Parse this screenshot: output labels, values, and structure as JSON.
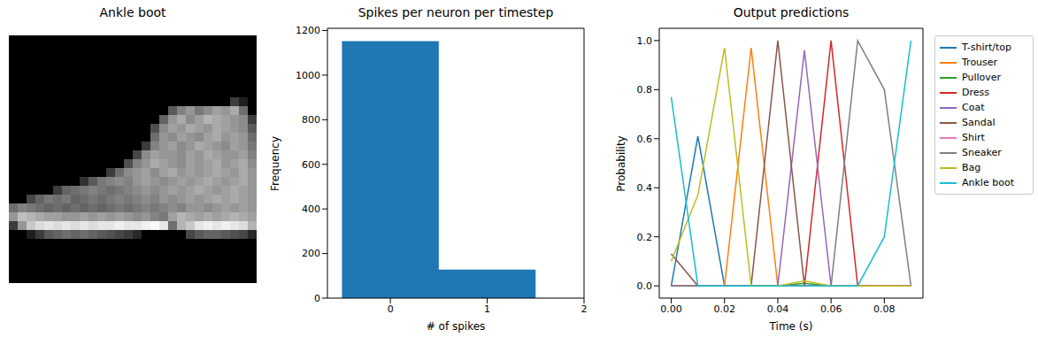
{
  "chart_data": [
    {
      "type": "image",
      "title": "Ankle boot",
      "tick_labels": false,
      "clim": [
        0,
        255
      ],
      "cells": [
        [
          0,
          0,
          0,
          0,
          0,
          0,
          0,
          0,
          0,
          0,
          0,
          0,
          0,
          0,
          0,
          0,
          0,
          0,
          0,
          0,
          0,
          0,
          0,
          0,
          0,
          0,
          0,
          0
        ],
        [
          0,
          0,
          0,
          0,
          0,
          0,
          0,
          0,
          0,
          0,
          0,
          0,
          0,
          0,
          0,
          0,
          0,
          0,
          0,
          0,
          0,
          0,
          0,
          0,
          0,
          0,
          0,
          0
        ],
        [
          0,
          0,
          0,
          0,
          0,
          0,
          0,
          0,
          0,
          0,
          0,
          0,
          0,
          0,
          0,
          0,
          0,
          0,
          0,
          0,
          0,
          0,
          0,
          0,
          0,
          0,
          0,
          0
        ],
        [
          0,
          0,
          0,
          0,
          0,
          0,
          0,
          0,
          0,
          0,
          0,
          0,
          0,
          0,
          0,
          0,
          0,
          0,
          0,
          0,
          0,
          0,
          0,
          0,
          0,
          0,
          0,
          0
        ],
        [
          0,
          0,
          0,
          0,
          0,
          0,
          0,
          0,
          0,
          0,
          0,
          0,
          0,
          0,
          0,
          0,
          0,
          0,
          0,
          0,
          0,
          0,
          0,
          0,
          0,
          0,
          0,
          0
        ],
        [
          0,
          0,
          0,
          0,
          0,
          0,
          0,
          0,
          0,
          0,
          0,
          0,
          0,
          0,
          0,
          0,
          0,
          0,
          0,
          0,
          0,
          0,
          0,
          0,
          0,
          0,
          0,
          0
        ],
        [
          0,
          0,
          0,
          0,
          0,
          0,
          0,
          0,
          0,
          0,
          0,
          0,
          0,
          0,
          0,
          0,
          0,
          0,
          0,
          0,
          0,
          0,
          0,
          0,
          0,
          0,
          0,
          0
        ],
        [
          0,
          0,
          0,
          0,
          0,
          0,
          0,
          0,
          0,
          0,
          0,
          0,
          0,
          0,
          0,
          0,
          0,
          0,
          0,
          0,
          0,
          0,
          0,
          0,
          0,
          60,
          30,
          0
        ],
        [
          0,
          0,
          0,
          0,
          0,
          0,
          0,
          0,
          0,
          0,
          0,
          0,
          0,
          0,
          0,
          0,
          0,
          0,
          90,
          130,
          150,
          120,
          140,
          160,
          150,
          170,
          110,
          0
        ],
        [
          0,
          0,
          0,
          0,
          0,
          0,
          0,
          0,
          0,
          0,
          0,
          0,
          0,
          0,
          0,
          0,
          0,
          100,
          150,
          170,
          140,
          160,
          180,
          170,
          160,
          150,
          140,
          60
        ],
        [
          0,
          0,
          0,
          0,
          0,
          0,
          0,
          0,
          0,
          0,
          0,
          0,
          0,
          0,
          0,
          0,
          80,
          140,
          160,
          150,
          170,
          160,
          150,
          170,
          160,
          150,
          140,
          90
        ],
        [
          0,
          0,
          0,
          0,
          0,
          0,
          0,
          0,
          0,
          0,
          0,
          0,
          0,
          0,
          0,
          0,
          110,
          150,
          140,
          160,
          150,
          140,
          160,
          170,
          150,
          160,
          150,
          110
        ],
        [
          0,
          0,
          0,
          0,
          0,
          0,
          0,
          0,
          0,
          0,
          0,
          0,
          0,
          0,
          0,
          60,
          130,
          150,
          160,
          140,
          150,
          170,
          160,
          150,
          140,
          160,
          150,
          120
        ],
        [
          0,
          0,
          0,
          0,
          0,
          0,
          0,
          0,
          0,
          0,
          0,
          0,
          0,
          0,
          70,
          140,
          160,
          150,
          150,
          140,
          160,
          150,
          170,
          160,
          150,
          150,
          160,
          130
        ],
        [
          0,
          0,
          0,
          0,
          0,
          0,
          0,
          0,
          0,
          0,
          0,
          0,
          0,
          80,
          130,
          150,
          170,
          160,
          150,
          140,
          160,
          150,
          160,
          170,
          150,
          160,
          170,
          140
        ],
        [
          0,
          0,
          0,
          0,
          0,
          0,
          0,
          0,
          0,
          0,
          0,
          60,
          110,
          140,
          150,
          160,
          140,
          160,
          170,
          150,
          160,
          150,
          160,
          170,
          160,
          150,
          170,
          150
        ],
        [
          0,
          0,
          0,
          0,
          0,
          0,
          0,
          0,
          50,
          90,
          120,
          130,
          140,
          130,
          150,
          160,
          150,
          140,
          150,
          160,
          150,
          160,
          170,
          160,
          150,
          160,
          170,
          150
        ],
        [
          0,
          0,
          0,
          0,
          0,
          60,
          100,
          110,
          120,
          130,
          120,
          110,
          120,
          130,
          140,
          150,
          140,
          150,
          160,
          150,
          160,
          170,
          160,
          150,
          160,
          170,
          160,
          150
        ],
        [
          0,
          0,
          70,
          100,
          120,
          110,
          120,
          100,
          110,
          120,
          110,
          120,
          130,
          120,
          130,
          140,
          130,
          150,
          140,
          150,
          160,
          150,
          160,
          170,
          160,
          170,
          160,
          150
        ],
        [
          110,
          130,
          120,
          110,
          100,
          110,
          100,
          110,
          100,
          110,
          100,
          110,
          120,
          110,
          120,
          130,
          120,
          130,
          140,
          130,
          150,
          150,
          140,
          150,
          160,
          150,
          160,
          150
        ],
        [
          150,
          190,
          180,
          170,
          160,
          160,
          150,
          150,
          160,
          150,
          160,
          150,
          160,
          150,
          140,
          150,
          130,
          120,
          160,
          180,
          170,
          160,
          170,
          160,
          170,
          180,
          170,
          160
        ],
        [
          60,
          150,
          200,
          220,
          230,
          220,
          230,
          220,
          230,
          220,
          230,
          230,
          240,
          230,
          230,
          240,
          250,
          230,
          110,
          180,
          200,
          230,
          240,
          230,
          240,
          230,
          220,
          180
        ],
        [
          0,
          0,
          30,
          60,
          90,
          100,
          110,
          100,
          110,
          100,
          90,
          80,
          70,
          60,
          40,
          0,
          0,
          0,
          0,
          0,
          70,
          90,
          100,
          100,
          90,
          80,
          70,
          40
        ],
        [
          0,
          0,
          0,
          0,
          0,
          0,
          0,
          0,
          0,
          0,
          0,
          0,
          0,
          0,
          0,
          0,
          0,
          0,
          0,
          0,
          0,
          0,
          0,
          0,
          0,
          0,
          0,
          0
        ],
        [
          0,
          0,
          0,
          0,
          0,
          0,
          0,
          0,
          0,
          0,
          0,
          0,
          0,
          0,
          0,
          0,
          0,
          0,
          0,
          0,
          0,
          0,
          0,
          0,
          0,
          0,
          0,
          0
        ],
        [
          0,
          0,
          0,
          0,
          0,
          0,
          0,
          0,
          0,
          0,
          0,
          0,
          0,
          0,
          0,
          0,
          0,
          0,
          0,
          0,
          0,
          0,
          0,
          0,
          0,
          0,
          0,
          0
        ],
        [
          0,
          0,
          0,
          0,
          0,
          0,
          0,
          0,
          0,
          0,
          0,
          0,
          0,
          0,
          0,
          0,
          0,
          0,
          0,
          0,
          0,
          0,
          0,
          0,
          0,
          0,
          0,
          0
        ],
        [
          0,
          0,
          0,
          0,
          0,
          0,
          0,
          0,
          0,
          0,
          0,
          0,
          0,
          0,
          0,
          0,
          0,
          0,
          0,
          0,
          0,
          0,
          0,
          0,
          0,
          0,
          0,
          0
        ]
      ]
    },
    {
      "type": "histogram",
      "title": "Spikes per neuron per timestep",
      "x_label": "# of spikes",
      "y_label": "Frequency",
      "bins": [
        -0.5,
        0.5,
        1.5,
        2.5
      ],
      "counts": [
        1152,
        128,
        0
      ],
      "color": "#1f77b4",
      "xlim": [
        -0.65,
        2
      ],
      "xticks": [
        0,
        1,
        2
      ],
      "ylim": [
        0,
        1210
      ],
      "yticks": [
        0,
        200,
        400,
        600,
        800,
        1000,
        1200
      ],
      "grid": false
    },
    {
      "type": "line",
      "title": "Output predictions",
      "x_label": "Time (s)",
      "y_label": "Probability",
      "x": [
        0,
        0.01,
        0.02,
        0.03,
        0.04,
        0.05,
        0.06,
        0.07,
        0.08,
        0.09
      ],
      "series": [
        {
          "name": "T-shirt/top",
          "color": "#1f77b4",
          "values": [
            0,
            0.61,
            0,
            0,
            0,
            0,
            0,
            0,
            0,
            0
          ]
        },
        {
          "name": "Trouser",
          "color": "#ff7f0e",
          "values": [
            0,
            0,
            0,
            0.97,
            0,
            0,
            0,
            0,
            0,
            0
          ]
        },
        {
          "name": "Pullover",
          "color": "#2ca02c",
          "values": [
            0,
            0,
            0,
            0,
            0,
            0.01,
            0,
            0,
            0,
            0
          ]
        },
        {
          "name": "Dress",
          "color": "#d62728",
          "values": [
            0,
            0,
            0,
            0,
            0,
            0,
            1,
            0,
            0,
            0
          ]
        },
        {
          "name": "Coat",
          "color": "#9467bd",
          "values": [
            0,
            0,
            0,
            0,
            0,
            0.96,
            0,
            0,
            0,
            0
          ]
        },
        {
          "name": "Sandal",
          "color": "#8c564b",
          "values": [
            0.13,
            0,
            0,
            0,
            1,
            0,
            0,
            0,
            0,
            0
          ]
        },
        {
          "name": "Shirt",
          "color": "#e377c2",
          "values": [
            0,
            0,
            0,
            0,
            0,
            0,
            0,
            0,
            0,
            0
          ]
        },
        {
          "name": "Sneaker",
          "color": "#7f7f7f",
          "values": [
            0,
            0,
            0,
            0,
            0,
            0,
            0,
            1,
            0.8,
            0
          ]
        },
        {
          "name": "Bag",
          "color": "#bcbd22",
          "values": [
            0.1,
            0.37,
            0.97,
            0,
            0,
            0.02,
            0,
            0,
            0,
            0
          ]
        },
        {
          "name": "Ankle boot",
          "color": "#17becf",
          "values": [
            0.77,
            0,
            0,
            0,
            0,
            0,
            0,
            0,
            0.2,
            1
          ]
        }
      ],
      "xlim": [
        -0.0045,
        0.0945
      ],
      "xticks": [
        {
          "value": 0,
          "label": "0.00"
        },
        {
          "value": 0.02,
          "label": "0.02"
        },
        {
          "value": 0.04,
          "label": "0.04"
        },
        {
          "value": 0.06,
          "label": "0.06"
        },
        {
          "value": 0.08,
          "label": "0.08"
        }
      ],
      "ylim": [
        -0.05,
        1.05
      ],
      "yticks": [
        {
          "value": 0,
          "label": "0.0"
        },
        {
          "value": 0.2,
          "label": "0.2"
        },
        {
          "value": 0.4,
          "label": "0.4"
        },
        {
          "value": 0.6,
          "label": "0.6"
        },
        {
          "value": 0.8,
          "label": "0.8"
        },
        {
          "value": 1,
          "label": "1.0"
        }
      ],
      "legend": "right",
      "grid": false
    }
  ]
}
